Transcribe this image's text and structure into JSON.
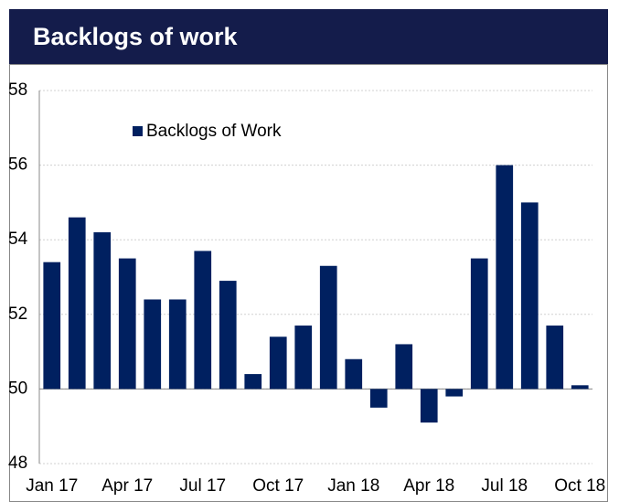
{
  "chart_data": {
    "type": "bar",
    "title": "Backlogs of work",
    "categories": [
      "Jan 17",
      null,
      null,
      "Apr 17",
      null,
      null,
      "Jul 17",
      null,
      null,
      "Oct 17",
      null,
      null,
      "Jan 18",
      null,
      null,
      "Apr 18",
      null,
      null,
      "Jul 18",
      null,
      null,
      "Oct 18"
    ],
    "series": [
      {
        "name": "Backlogs of Work",
        "color": "#002060",
        "values": [
          53.4,
          54.6,
          54.2,
          53.5,
          52.4,
          52.4,
          53.7,
          52.9,
          50.4,
          51.4,
          51.7,
          53.3,
          50.8,
          49.5,
          51.2,
          49.1,
          49.8,
          53.5,
          56.0,
          55.0,
          51.7,
          50.1
        ]
      }
    ],
    "ylim": [
      48,
      58
    ],
    "yticks": [
      48,
      50,
      52,
      54,
      56,
      58
    ],
    "base": 50,
    "grid": true,
    "legend": "top-left"
  }
}
